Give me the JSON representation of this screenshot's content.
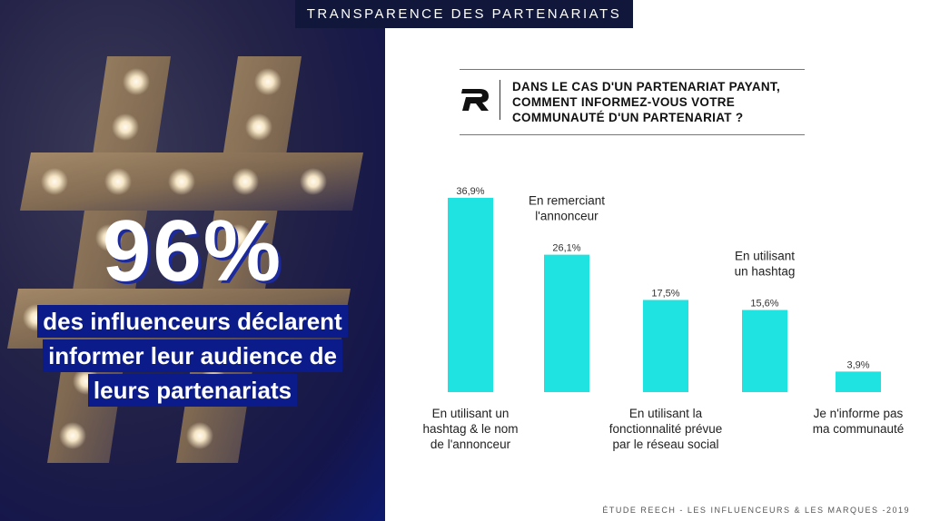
{
  "banner": {
    "title": "TRANSPARENCE DES PARTENARIATS"
  },
  "hero": {
    "stat": "96%",
    "caption_lines": [
      "des influenceurs déclarent",
      "informer leur audience de",
      "leurs partenariats"
    ]
  },
  "question": {
    "lines": [
      "DANS LE CAS D'UN PARTENARIAT PAYANT,",
      "COMMENT INFORMEZ-VOUS VOTRE",
      "COMMUNAUTÉ D'UN PARTENARIAT ?"
    ]
  },
  "footer": {
    "text": "ÉTUDE REECH - LES INFLUENCEURS & LES MARQUES -2019"
  },
  "colors": {
    "bar": "#1ee3e0",
    "banner_bg": "#10173a",
    "caption_bg": "#0b1b8a"
  },
  "chart_data": {
    "type": "bar",
    "title": "DANS LE CAS D'UN PARTENARIAT PAYANT, COMMENT INFORMEZ-VOUS VOTRE COMMUNAUTÉ D'UN PARTENARIAT ?",
    "xlabel": "",
    "ylabel": "",
    "ylim": [
      0,
      40
    ],
    "grid": false,
    "categories": [
      "En utilisant un hashtag & le nom de l'annonceur",
      "En remerciant l'annonceur",
      "En utilisant la fonctionnalité prévue par le réseau social",
      "En utilisant un hashtag",
      "Je n'informe pas ma communauté"
    ],
    "category_lines": [
      [
        "En utilisant un",
        "hashtag & le nom",
        "de l'annonceur"
      ],
      [
        "En remerciant",
        "l'annonceur"
      ],
      [
        "En utilisant la",
        "fonctionnalité prévue",
        "par le réseau social"
      ],
      [
        "En utilisant",
        "un hashtag"
      ],
      [
        "Je n'informe pas",
        "ma communauté"
      ]
    ],
    "label_positions": [
      "below",
      "above",
      "below",
      "above",
      "below"
    ],
    "values": [
      36.9,
      26.1,
      17.5,
      15.6,
      3.9
    ],
    "value_labels": [
      "36,9%",
      "26,1%",
      "17,5%",
      "15,6%",
      "3,9%"
    ]
  }
}
